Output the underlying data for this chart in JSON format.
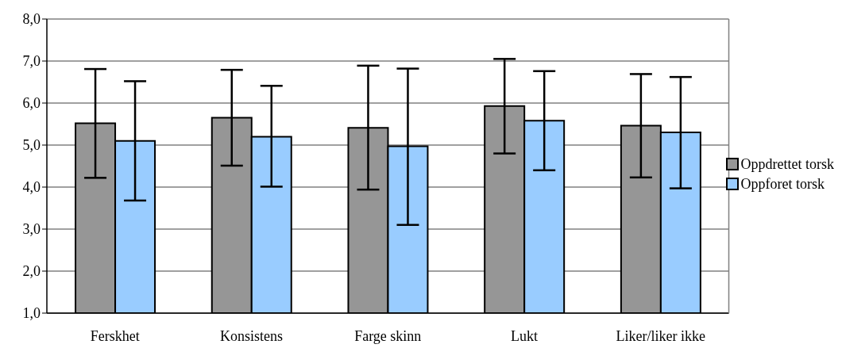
{
  "chart_data": {
    "type": "bar",
    "categories": [
      "Ferskhet",
      "Konsistens",
      "Farge skinn",
      "Lukt",
      "Liker/liker ikke"
    ],
    "series": [
      {
        "name": "Oppdrettet torsk",
        "color": "#969696",
        "values": [
          5.52,
          5.65,
          5.41,
          5.93,
          5.46
        ],
        "errors": [
          [
            4.22,
            6.81
          ],
          [
            4.51,
            6.79
          ],
          [
            3.94,
            6.89
          ],
          [
            4.8,
            7.05
          ],
          [
            4.23,
            6.69
          ]
        ]
      },
      {
        "name": "Oppforet torsk",
        "color": "#99ccff",
        "values": [
          5.1,
          5.2,
          4.97,
          5.58,
          5.3
        ],
        "errors": [
          [
            3.68,
            6.52
          ],
          [
            4.01,
            6.41
          ],
          [
            3.1,
            6.82
          ],
          [
            4.4,
            6.76
          ],
          [
            3.97,
            6.62
          ]
        ]
      }
    ],
    "ylim": [
      1,
      8
    ],
    "yticks": [
      {
        "value": 1,
        "label": "1,0"
      },
      {
        "value": 2,
        "label": "2,0"
      },
      {
        "value": 3,
        "label": "3,0"
      },
      {
        "value": 4,
        "label": "4,0"
      },
      {
        "value": 5,
        "label": "5,0"
      },
      {
        "value": 6,
        "label": "6,0"
      },
      {
        "value": 7,
        "label": "7,0"
      },
      {
        "value": 8,
        "label": "8,0"
      }
    ],
    "grid": "y",
    "legend": "right"
  }
}
